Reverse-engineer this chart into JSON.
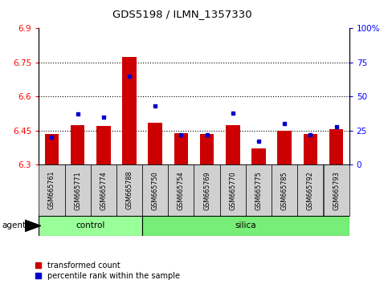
{
  "title": "GDS5198 / ILMN_1357330",
  "samples": [
    "GSM665761",
    "GSM665771",
    "GSM665774",
    "GSM665788",
    "GSM665750",
    "GSM665754",
    "GSM665769",
    "GSM665770",
    "GSM665775",
    "GSM665785",
    "GSM665792",
    "GSM665793"
  ],
  "n_control": 4,
  "n_silica": 8,
  "red_values": [
    6.435,
    6.475,
    6.47,
    6.775,
    6.485,
    6.44,
    6.435,
    6.475,
    6.37,
    6.45,
    6.435,
    6.455
  ],
  "blue_values": [
    20,
    37,
    35,
    65,
    43,
    22,
    22,
    38,
    17,
    30,
    22,
    28
  ],
  "ylim_left": [
    6.3,
    6.9
  ],
  "ylim_right": [
    0,
    100
  ],
  "yticks_left": [
    6.3,
    6.45,
    6.6,
    6.75,
    6.9
  ],
  "yticks_right": [
    0,
    25,
    50,
    75,
    100
  ],
  "ytick_labels_left": [
    "6.3",
    "6.45",
    "6.6",
    "6.75",
    "6.9"
  ],
  "ytick_labels_right": [
    "0",
    "25",
    "50",
    "75",
    "100%"
  ],
  "dotted_lines": [
    6.75,
    6.6,
    6.45
  ],
  "bar_color": "#cc0000",
  "dot_color": "#0000cc",
  "control_color": "#99ff99",
  "silica_color": "#77ee77",
  "sample_box_color": "#d0d0d0",
  "legend_red": "transformed count",
  "legend_blue": "percentile rank within the sample",
  "bar_bottom": 6.3,
  "bar_width": 0.55
}
